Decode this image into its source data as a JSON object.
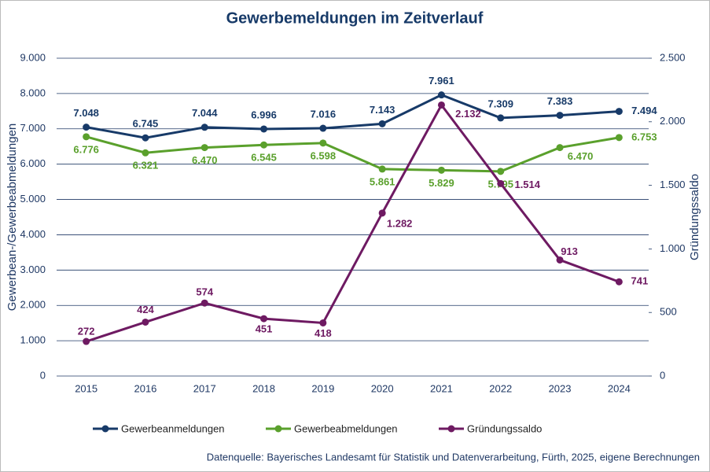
{
  "chart_data": {
    "type": "line",
    "title": "Gewerbemeldungen im Zeitverlauf",
    "y_label": "Gewerbean-/Gewerbeabmeldungen",
    "y2_label": "Gründungssaldo",
    "source": "Datenquelle: Bayerisches Landesamt für Statistik und Datenverarbeitung, Fürth, 2025, eigene Berechnungen",
    "categories": [
      "2015",
      "2016",
      "2017",
      "2018",
      "2019",
      "2020",
      "2021",
      "2022",
      "2023",
      "2024"
    ],
    "ylim": [
      0,
      9000
    ],
    "yticks": [
      0,
      {
        "value": 1000,
        "label": "1.000"
      },
      {
        "value": 2000,
        "label": "2.000"
      },
      {
        "value": 3000,
        "label": "3.000"
      },
      {
        "value": 4000,
        "label": "4.000"
      },
      {
        "value": 5000,
        "label": "5.000"
      },
      {
        "value": 6000,
        "label": "6.000"
      },
      {
        "value": 7000,
        "label": "7.000"
      },
      {
        "value": 8000,
        "label": "8.000"
      },
      {
        "value": 9000,
        "label": "9.000"
      }
    ],
    "y2lim": [
      0,
      2500
    ],
    "y2ticks": [
      0,
      500,
      {
        "value": 1000,
        "label": "1.000"
      },
      {
        "value": 1500,
        "label": "1.500"
      },
      {
        "value": 2000,
        "label": "2.000"
      },
      {
        "value": 2500,
        "label": "2.500"
      }
    ],
    "grid": true,
    "legend": "bottom",
    "series": [
      {
        "name": "Gewerbeanmeldungen",
        "color": "#173a68",
        "values": [
          7048,
          6745,
          7044,
          6996,
          7016,
          7143,
          7961,
          7309,
          7383,
          7494
        ],
        "value_labels": [
          "7.048",
          "6.745",
          "7.044",
          "6.996",
          "7.016",
          "7.143",
          "7.961",
          "7.309",
          "7.383",
          "7.494"
        ]
      },
      {
        "name": "Gewerbeabmeldungen",
        "color": "#5aa02c",
        "values": [
          6776,
          6321,
          6470,
          6545,
          6598,
          5861,
          5829,
          5795,
          6470,
          6753
        ],
        "value_labels": [
          "6.776",
          "6.321",
          "6.470",
          "6.545",
          "6.598",
          "5.861",
          "5.829",
          "5.795",
          "6.470",
          "6.753"
        ]
      },
      {
        "name": "Gründungssaldo",
        "color": "#6e1a62",
        "axis": "y2",
        "values": [
          272,
          424,
          574,
          451,
          418,
          1282,
          2132,
          1514,
          913,
          741
        ],
        "value_labels": [
          "272",
          "424",
          "574",
          "451",
          "418",
          "1.282",
          "2.132",
          "1.514",
          "913",
          "741"
        ]
      }
    ]
  }
}
